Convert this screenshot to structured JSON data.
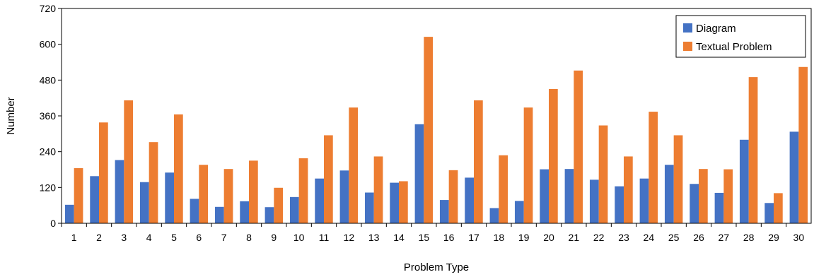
{
  "chart_data": {
    "type": "bar",
    "title": "",
    "xlabel": "Problem Type",
    "ylabel": "Number",
    "ylim": [
      0,
      720
    ],
    "yticks": [
      0,
      120,
      240,
      360,
      480,
      600,
      720
    ],
    "grid": false,
    "legend_position": "top-right",
    "categories": [
      "1",
      "2",
      "3",
      "4",
      "5",
      "6",
      "7",
      "8",
      "9",
      "10",
      "11",
      "12",
      "13",
      "14",
      "15",
      "16",
      "17",
      "18",
      "19",
      "20",
      "21",
      "22",
      "23",
      "24",
      "25",
      "26",
      "27",
      "28",
      "29",
      "30"
    ],
    "series": [
      {
        "name": "Diagram",
        "color": "#4472C4",
        "values": [
          62,
          158,
          212,
          138,
          170,
          82,
          55,
          74,
          54,
          88,
          150,
          177,
          103,
          136,
          332,
          78,
          153,
          51,
          75,
          181,
          182,
          146,
          124,
          150,
          196,
          132,
          102,
          280,
          68,
          307
        ]
      },
      {
        "name": "Textual Problem",
        "color": "#ED7D31",
        "values": [
          185,
          338,
          412,
          272,
          365,
          196,
          182,
          210,
          119,
          218,
          295,
          388,
          224,
          141,
          625,
          178,
          412,
          228,
          388,
          450,
          512,
          328,
          224,
          374,
          295,
          182,
          181,
          490,
          101,
          524
        ]
      }
    ]
  }
}
